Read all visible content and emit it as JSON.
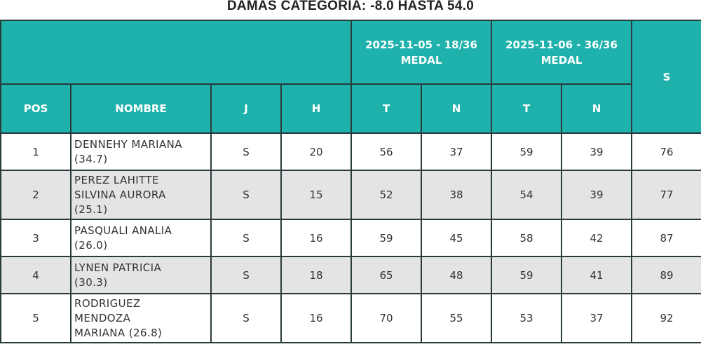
{
  "title": "DAMAS CATEGORIA: -8.0 HASTA 54.0",
  "rounds": [
    {
      "date": "2025-11-05 - 18/36",
      "format": "MEDAL"
    },
    {
      "date": "2025-11-06 - 36/36",
      "format": "MEDAL"
    }
  ],
  "headers": {
    "pos": "POS",
    "nombre": "NOMBRE",
    "j": "J",
    "h": "H",
    "t": "T",
    "n": "N",
    "s": "S"
  },
  "rows": [
    {
      "pos": "1",
      "name_lines": [
        "DENNEHY MARIANA",
        "(34.7)"
      ],
      "j": "S",
      "h": "20",
      "r1t": "56",
      "r1n": "37",
      "r2t": "59",
      "r2n": "39",
      "s": "76"
    },
    {
      "pos": "2",
      "name_lines": [
        "PEREZ LAHITTE",
        "SILVINA AURORA",
        "(25.1)"
      ],
      "j": "S",
      "h": "15",
      "r1t": "52",
      "r1n": "38",
      "r2t": "54",
      "r2n": "39",
      "s": "77"
    },
    {
      "pos": "3",
      "name_lines": [
        "PASQUALI ANALIA",
        "(26.0)"
      ],
      "j": "S",
      "h": "16",
      "r1t": "59",
      "r1n": "45",
      "r2t": "58",
      "r2n": "42",
      "s": "87"
    },
    {
      "pos": "4",
      "name_lines": [
        "LYNEN PATRICIA",
        "(30.3)"
      ],
      "j": "S",
      "h": "18",
      "r1t": "65",
      "r1n": "48",
      "r2t": "59",
      "r2n": "41",
      "s": "89"
    },
    {
      "pos": "5",
      "name_lines": [
        "RODRIGUEZ",
        "MENDOZA",
        "MARIANA (26.8)"
      ],
      "j": "S",
      "h": "16",
      "r1t": "70",
      "r1n": "55",
      "r2t": "53",
      "r2n": "37",
      "s": "92"
    }
  ],
  "colors": {
    "header_bg": "#1fb2ac",
    "header_text": "#ffffff",
    "alt_row": "#e4e4e4",
    "border": "#2a3b3c"
  }
}
